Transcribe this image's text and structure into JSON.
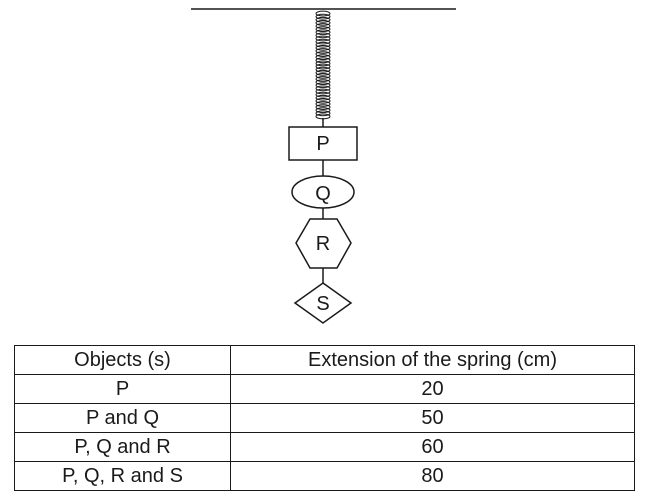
{
  "objects": {
    "p": "P",
    "q": "Q",
    "r": "R",
    "s": "S"
  },
  "table": {
    "headers": [
      "Objects (s)",
      "Extension of the spring (cm)"
    ],
    "rows": [
      [
        "P",
        "20"
      ],
      [
        "P and Q",
        "50"
      ],
      [
        "P, Q and R",
        "60"
      ],
      [
        "P, Q, R and S",
        "80"
      ]
    ]
  }
}
